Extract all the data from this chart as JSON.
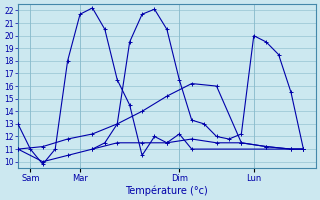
{
  "background_color": "#cce8f0",
  "grid_color": "#88bbcc",
  "line_color": "#0000aa",
  "xlabel": "Température (°c)",
  "xlabel_color": "#0000aa",
  "tick_color": "#0000aa",
  "ylim": [
    9.5,
    22.5
  ],
  "yticks": [
    10,
    11,
    12,
    13,
    14,
    15,
    16,
    17,
    18,
    19,
    20,
    21,
    22
  ],
  "xtick_labels": [
    "Sam",
    "Mar",
    "Dim",
    "Lun"
  ],
  "xtick_positions": [
    1,
    5,
    13,
    19
  ],
  "xlim": [
    0,
    24
  ],
  "series1_x": [
    0,
    1,
    2,
    3,
    4,
    5,
    6,
    7,
    8,
    9,
    10,
    11,
    12,
    13,
    14,
    23
  ],
  "series1_y": [
    13,
    11,
    9.8,
    11,
    18,
    21.7,
    22.2,
    20.5,
    16.5,
    14.5,
    10.5,
    12,
    11.5,
    12.2,
    11,
    11
  ],
  "series2_x": [
    0,
    2,
    4,
    6,
    8,
    10,
    12,
    14,
    16,
    18,
    20,
    22,
    23
  ],
  "series2_y": [
    11,
    11.2,
    11.8,
    12.2,
    13,
    14,
    15.2,
    16.2,
    16,
    11.5,
    11.2,
    11,
    11
  ],
  "series3_x": [
    6,
    7,
    8,
    9,
    10,
    11,
    12,
    13,
    14,
    15,
    16,
    17,
    18,
    19,
    20,
    21,
    22,
    23
  ],
  "series3_y": [
    11,
    11.5,
    13,
    19.5,
    21.7,
    22.1,
    20.5,
    16.5,
    13.3,
    13,
    12,
    11.8,
    12.2,
    20,
    19.5,
    18.5,
    15.5,
    11
  ],
  "series4_x": [
    0,
    2,
    4,
    6,
    8,
    10,
    12,
    14,
    16,
    18,
    20,
    22,
    23
  ],
  "series4_y": [
    11,
    10,
    10.5,
    11,
    11.5,
    11.5,
    11.5,
    11.8,
    11.5,
    11.5,
    11.2,
    11,
    11
  ]
}
